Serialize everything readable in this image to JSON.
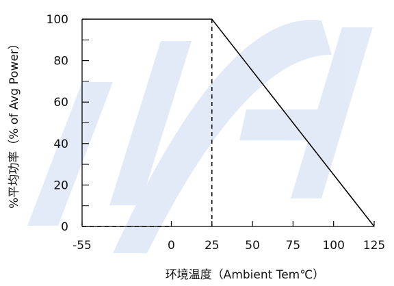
{
  "chart_data": {
    "type": "line",
    "title": "",
    "xlabel": "环境温度（Ambient Tem℃）",
    "ylabel": "%平均功率（% of Avg Power）",
    "x_ticks": [
      -55,
      0,
      25,
      50,
      75,
      100,
      125
    ],
    "x_tick_labels": [
      "-55",
      "0",
      "25",
      "50",
      "75",
      "100",
      "125"
    ],
    "y_ticks": [
      0,
      20,
      40,
      60,
      80,
      100
    ],
    "y_tick_labels": [
      "0",
      "20",
      "40",
      "60",
      "80",
      "100"
    ],
    "xlim": [
      -55,
      125
    ],
    "ylim": [
      0,
      100
    ],
    "grid": false,
    "legend": "none",
    "series": [
      {
        "x": [
          -55,
          25,
          125
        ],
        "y": [
          100,
          100,
          0
        ],
        "style": "solid",
        "color": "#000000"
      }
    ],
    "reference_lines": [
      {
        "x": [
          25,
          25
        ],
        "y": [
          0,
          100
        ],
        "style": "dashed",
        "color": "#000000"
      },
      {
        "x": [
          -55,
          0
        ],
        "y": [
          0,
          0
        ],
        "style": "dashed",
        "color": "#000000"
      }
    ],
    "watermark": {
      "color": "#2457c5"
    }
  }
}
